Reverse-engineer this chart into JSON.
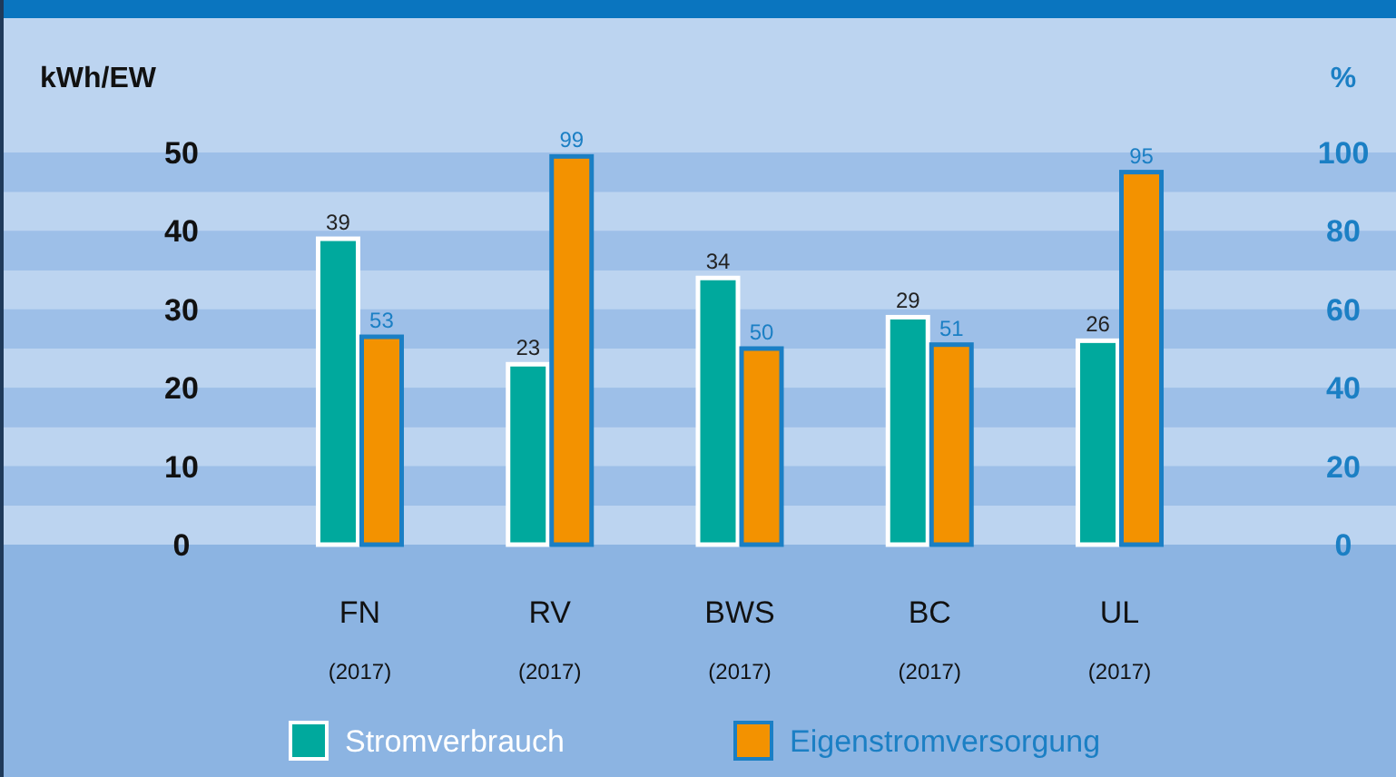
{
  "chart_data": {
    "type": "bar",
    "categories": [
      "FN\n(2017)",
      "RV\n(2017)",
      "BWS\n(2017)",
      "BC\n(2017)",
      "UL\n(2017)"
    ],
    "ylabel": "kWh/EW",
    "y2label": "%",
    "series": [
      {
        "name": "Stromverbrauch",
        "color": "#00a99d",
        "values": [
          39,
          23,
          34,
          29,
          26
        ]
      },
      {
        "name": "Eigenstromversorgung",
        "color": "#f39200",
        "values": [
          53,
          99,
          50,
          51,
          95
        ],
        "axis": "y2"
      }
    ],
    "ylim": [
      0,
      50
    ],
    "yticks": [
      0,
      10,
      20,
      30,
      40,
      50
    ],
    "y2lim": [
      0,
      100
    ],
    "y2ticks": [
      0,
      20,
      40,
      60,
      80,
      100
    ],
    "bands": [
      {
        "axis": "y",
        "from": 0,
        "to": 5,
        "color": "#bcd4f0"
      },
      {
        "axis": "y",
        "from": 5,
        "to": 10,
        "color": "#9dbfe8"
      },
      {
        "axis": "y",
        "from": 10,
        "to": 15,
        "color": "#bcd4f0"
      },
      {
        "axis": "y",
        "from": 15,
        "to": 20,
        "color": "#9dbfe8"
      },
      {
        "axis": "y",
        "from": 20,
        "to": 25,
        "color": "#bcd4f0"
      },
      {
        "axis": "y",
        "from": 25,
        "to": 30,
        "color": "#9dbfe8"
      },
      {
        "axis": "y",
        "from": 30,
        "to": 35,
        "color": "#bcd4f0"
      },
      {
        "axis": "y",
        "from": 35,
        "to": 40,
        "color": "#9dbfe8"
      },
      {
        "axis": "y",
        "from": 40,
        "to": 45,
        "color": "#bcd4f0"
      },
      {
        "axis": "y",
        "from": 45,
        "to": 50,
        "color": "#9dbfe8"
      }
    ],
    "data_labels": true,
    "legend": "bottom",
    "grid": false
  }
}
